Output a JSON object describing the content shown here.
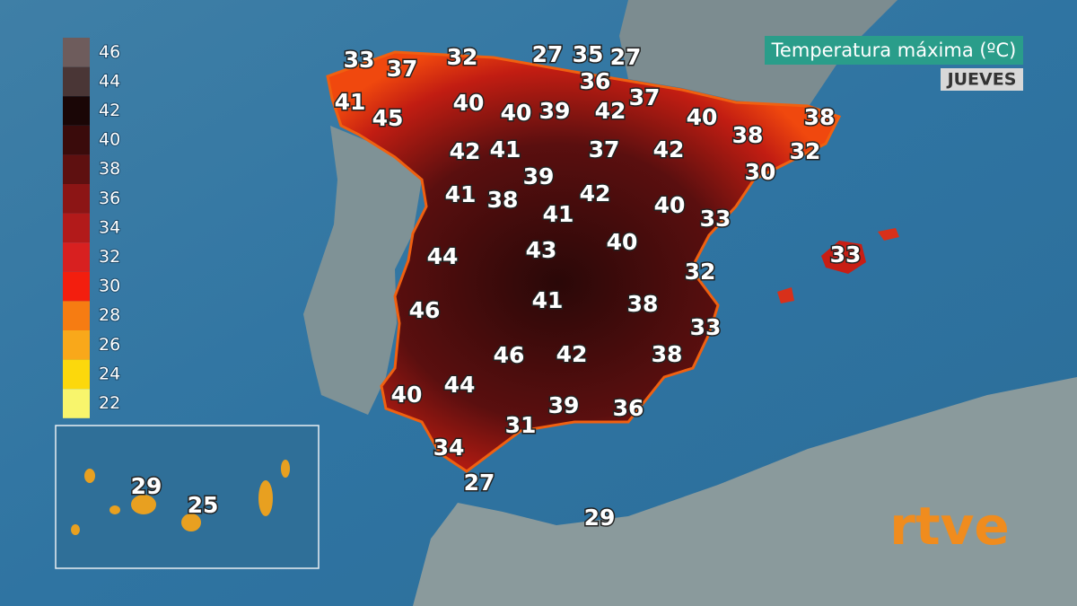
{
  "header": {
    "title": "Temperatura máxima (ºC)",
    "day": "JUEVES"
  },
  "legend": [
    {
      "label": 46,
      "color": "#6e5c5c"
    },
    {
      "label": 44,
      "color": "#4a3636"
    },
    {
      "label": 42,
      "color": "#1a0606"
    },
    {
      "label": 40,
      "color": "#3a0b0b"
    },
    {
      "label": 38,
      "color": "#5e1010"
    },
    {
      "label": 36,
      "color": "#8c1515"
    },
    {
      "label": 34,
      "color": "#b21a1a"
    },
    {
      "label": 32,
      "color": "#d82020"
    },
    {
      "label": 30,
      "color": "#f31e0e"
    },
    {
      "label": 28,
      "color": "#f67c12"
    },
    {
      "label": 26,
      "color": "#f9a81a"
    },
    {
      "label": 24,
      "color": "#fcd80c"
    },
    {
      "label": 22,
      "color": "#f8f56c"
    }
  ],
  "temperatures": [
    33,
    37,
    32,
    27,
    35,
    27,
    36,
    41,
    45,
    40,
    40,
    39,
    42,
    37,
    40,
    38,
    38,
    32,
    42,
    41,
    37,
    42,
    30,
    39,
    41,
    38,
    42,
    40,
    33,
    41,
    44,
    43,
    40,
    33,
    32,
    41,
    38,
    46,
    33,
    46,
    42,
    38,
    44,
    40,
    39,
    36,
    31,
    34,
    27,
    29,
    29,
    25
  ],
  "logo": "rtve"
}
